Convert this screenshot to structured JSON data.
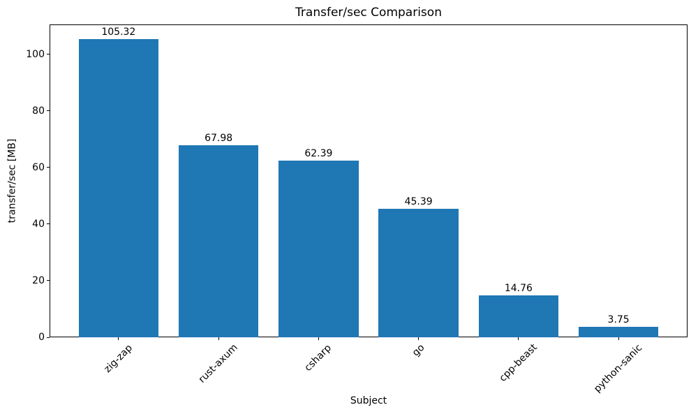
{
  "figure": {
    "background": "#ffffff",
    "text_color": "#000000",
    "spine_color": "#000000"
  },
  "chart_data": {
    "type": "bar",
    "title": "Transfer/sec Comparison",
    "xlabel": "Subject",
    "ylabel": "transfer/sec [MB]",
    "categories": [
      "zig-zap",
      "rust-axum",
      "csharp",
      "go",
      "cpp-beast",
      "python-sanic"
    ],
    "values": [
      105.32,
      67.98,
      62.39,
      45.39,
      14.76,
      3.75
    ],
    "bar_labels": [
      "105.32",
      "67.98",
      "62.39",
      "45.39",
      "14.76",
      "3.75"
    ],
    "bar_color": "#1f77b4",
    "yticks": [
      0,
      20,
      40,
      60,
      80,
      100
    ],
    "ylim": [
      0,
      110.6
    ],
    "xtick_rotation_deg": 45,
    "bar_width_fraction": 0.8,
    "grid": false,
    "legend": "none"
  }
}
